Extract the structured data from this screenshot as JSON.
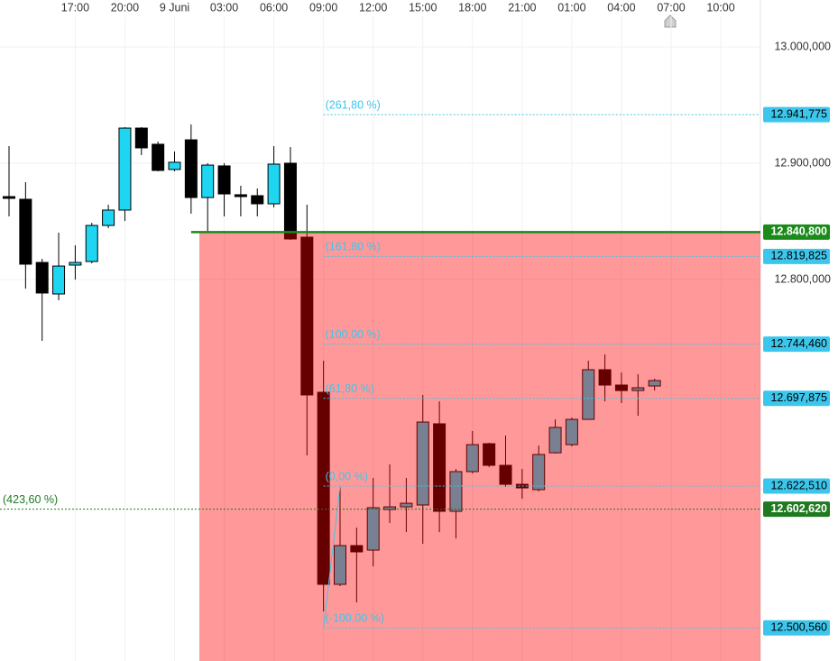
{
  "chart_data": {
    "type": "candlestick",
    "categories": [
      null,
      null,
      null,
      null,
      "17:00",
      null,
      null,
      "20:00",
      null,
      null,
      "9 Juni",
      null,
      null,
      "03:00",
      null,
      null,
      "06:00",
      null,
      null,
      "09:00",
      null,
      null,
      "12:00",
      null,
      null,
      "15:00",
      null,
      null,
      "18:00",
      null,
      null,
      "21:00",
      null,
      null,
      "01:00",
      null,
      null,
      "04:00",
      null,
      null,
      "07:00",
      null,
      null,
      "10:00"
    ],
    "open": [
      12871.3,
      12869.0,
      12814.7,
      12787.6,
      12812.4,
      12815.5,
      12846.5,
      12859.7,
      12930.2,
      12916.3,
      12894.6,
      12920.1,
      12870.5,
      12897.7,
      12872.9,
      12872.1,
      12865.1,
      12900.0,
      12836.4,
      12703.1,
      12538.0,
      12571.3,
      12567.4,
      12602.3,
      12604.6,
      12606.2,
      12676.0,
      12600.8,
      12634.9,
      12658.9,
      12640.3,
      12624.0,
      12619.4,
      12651.1,
      12658.1,
      12679.8,
      12722.5,
      12709.3,
      12704.6,
      12708.5,
      null,
      null,
      null,
      null
    ],
    "high": [
      12914.7,
      12883.7,
      12817.8,
      12840.3,
      12829.4,
      12848.8,
      12864.3,
      12931.0,
      12931.0,
      12918.6,
      12910.1,
      12933.3,
      12900.0,
      12900.0,
      12880.6,
      12878.3,
      12914.7,
      12913.9,
      12864.3,
      12730.2,
      12621.7,
      12586.8,
      12629.4,
      12641.1,
      12629.4,
      12700.8,
      12695.3,
      12637.2,
      12669.8,
      12659.7,
      12665.9,
      12637.2,
      12657.3,
      12679.8,
      12681.4,
      12730.2,
      12735.6,
      12720.1,
      12718.6,
      12714.7,
      null,
      null,
      null,
      null
    ],
    "low": [
      12854.3,
      12792.2,
      12747.3,
      12782.2,
      12800.0,
      12813.9,
      12844.2,
      12850.4,
      12907.0,
      12893.0,
      12893.0,
      12856.6,
      12840.3,
      12854.3,
      12854.3,
      12854.3,
      12862.0,
      12834.1,
      12648.8,
      12514.7,
      12536.4,
      12522.5,
      12553.5,
      12590.7,
      12582.9,
      12572.8,
      12582.9,
      12577.5,
      12633.3,
      12638.7,
      12621.7,
      12611.6,
      12617.8,
      12650.4,
      12656.6,
      12679.8,
      12695.3,
      12693.8,
      12682.9,
      12704.6,
      null,
      null,
      null,
      null
    ],
    "close": [
      12869.8,
      12813.2,
      12788.4,
      12811.6,
      12814.7,
      12846.5,
      12859.7,
      12930.2,
      12913.2,
      12893.8,
      12900.8,
      12870.5,
      12898.4,
      12873.6,
      12871.3,
      12865.1,
      12899.2,
      12834.9,
      12700.8,
      12538.0,
      12571.3,
      12565.9,
      12603.9,
      12604.6,
      12607.7,
      12677.5,
      12600.8,
      12634.9,
      12658.1,
      12640.3,
      12624.0,
      12620.9,
      12649.6,
      12672.9,
      12679.8,
      12722.5,
      12709.3,
      12704.6,
      12707.0,
      12713.2,
      null,
      null,
      null,
      null
    ],
    "up_color": "#1ed6f2",
    "down_color": "#000000",
    "ylim": [
      12472.1,
      13040.3
    ],
    "yticks": [
      {
        "value": 13000,
        "label": "13.000,000"
      },
      {
        "value": 12900,
        "label": "12.900,000"
      },
      {
        "value": 12800,
        "label": "12.800,000"
      }
    ],
    "grid": true,
    "fib_levels": [
      {
        "name": "(261,80 %)",
        "value": 12941.775,
        "label": "12.941,775"
      },
      {
        "name": "(161,80 %)",
        "value": 12819.825,
        "label": "12.819,825"
      },
      {
        "name": "(100,00 %)",
        "value": 12744.46,
        "label": "12.744,460"
      },
      {
        "name": "(61,80 %)",
        "value": 12697.875,
        "label": "12.697,875"
      },
      {
        "name": "(0,00 %)",
        "value": 12622.51,
        "label": "12.622,510"
      },
      {
        "name": "(-100,00 %)",
        "value": 12500.56,
        "label": "12.500,560"
      }
    ],
    "fib_color": "#3cc6ec",
    "level_line": {
      "value": 12840.8,
      "label": "12.840,800",
      "color": "#1b8a1b"
    },
    "extension_line": {
      "name": "(423,60 %)",
      "value": 12602.62,
      "label": "12.602,620",
      "color": "#1f7a1f"
    },
    "zone_color": "#ff0000"
  }
}
